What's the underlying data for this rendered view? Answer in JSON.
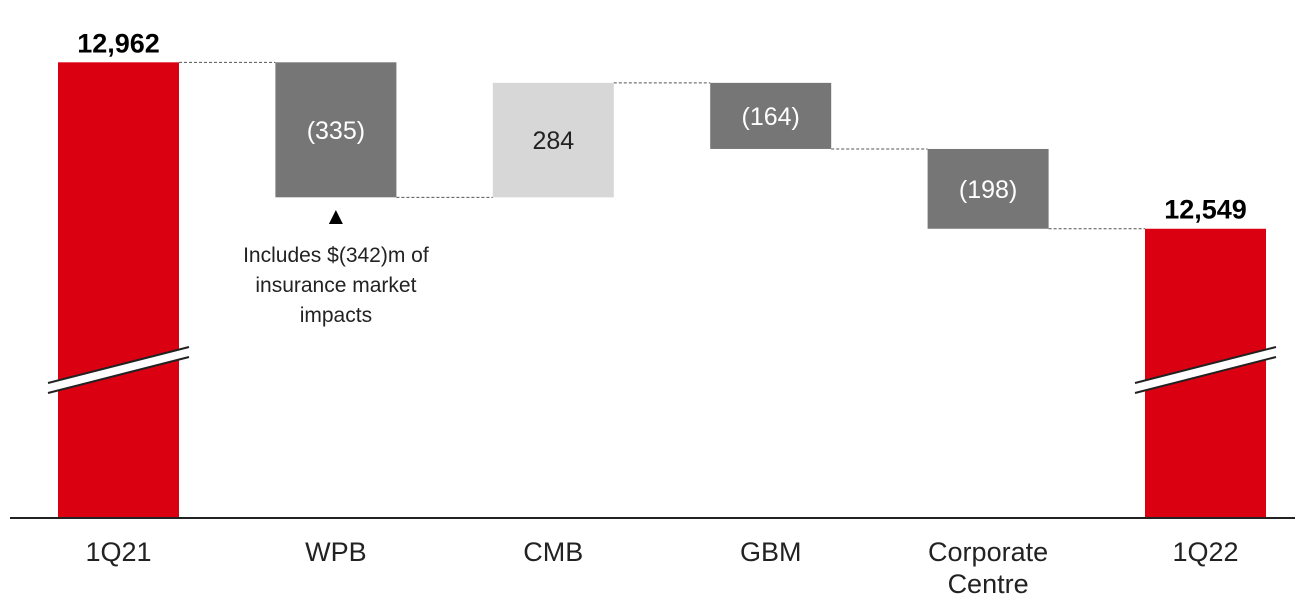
{
  "chart_data": {
    "type": "waterfall",
    "categories": [
      "1Q21",
      "WPB",
      "CMB",
      "GBM",
      "Corporate\nCentre",
      "1Q22"
    ],
    "values": [
      12962,
      -335,
      284,
      -164,
      -198,
      12549
    ],
    "value_labels": [
      "12,962",
      "(335)",
      "284",
      "(164)",
      "(198)",
      "12,549"
    ],
    "kinds": [
      "total",
      "delta",
      "delta",
      "delta",
      "delta",
      "total"
    ],
    "axis_break": true,
    "ylim": [
      12400,
      13000
    ],
    "annotation": {
      "category": "WPB",
      "marker": "▲",
      "lines": [
        "Includes $(342)m of",
        "insurance market",
        "impacts"
      ]
    },
    "colors": {
      "total": "#db0011",
      "negative": "#767676",
      "positive": "#d7d7d7",
      "negative_label": "#ffffff",
      "positive_label": "#222222",
      "connector": "#555555",
      "axis": "#222222"
    }
  }
}
